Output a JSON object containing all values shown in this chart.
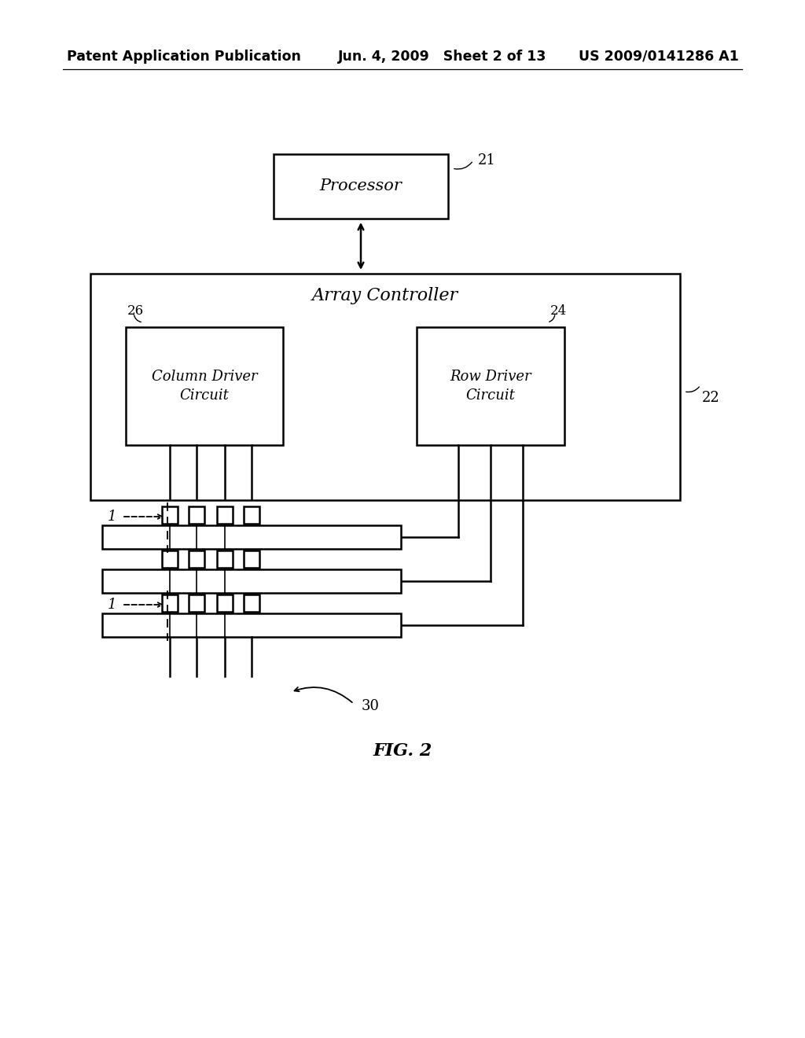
{
  "bg_color": "#ffffff",
  "header_left": "Patent Application Publication",
  "header_mid": "Jun. 4, 2009   Sheet 2 of 13",
  "header_right": "US 2009/0141286 A1",
  "fig_label": "FIG. 2",
  "line_color": "#000000"
}
